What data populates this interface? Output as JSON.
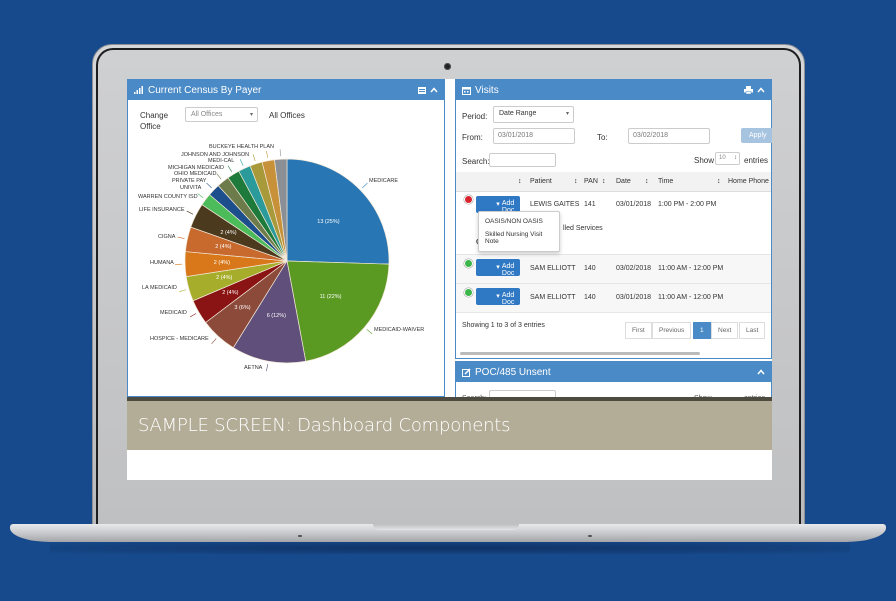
{
  "census_panel": {
    "title": "Current Census By Payer",
    "change_office_label": "Change Office",
    "office_select_value": "All Offices",
    "office_display": "All Offices"
  },
  "visits_panel": {
    "title": "Visits",
    "period_label": "Period:",
    "period_value": "Date Range",
    "from_label": "From:",
    "from_value": "03/01/2018",
    "to_label": "To:",
    "to_value": "03/02/2018",
    "apply_label": "Apply",
    "search_label": "Search:",
    "search_value": "",
    "show_label": "Show",
    "show_value": "10",
    "entries_label": "entries",
    "columns": [
      "Patient",
      "PAN",
      "Date",
      "Time",
      "Home Phone"
    ],
    "rows": [
      {
        "status": "red",
        "action": "Add Doc",
        "patient": "LEWIS GAITES",
        "pan": "141",
        "date": "03/01/2018",
        "time": "1:00 PM - 2:00 PM",
        "phone": ""
      },
      {
        "status": "green",
        "action": "Add Doc",
        "patient": "SAM ELLIOTT",
        "pan": "140",
        "date": "03/02/2018",
        "time": "11:00 AM - 12:00 PM",
        "phone": ""
      },
      {
        "status": "green",
        "action": "Add Doc",
        "patient": "SAM ELLIOTT",
        "pan": "140",
        "date": "03/01/2018",
        "time": "11:00 AM - 12:00 PM",
        "phone": ""
      }
    ],
    "dropdown_items": [
      "OASIS/NON OASIS",
      "Skilled Nursing Visit Note"
    ],
    "expanded_partial_text": "lled Services",
    "comments_label": "Comments:",
    "info_text": "Showing 1 to 3 of 3 entries",
    "pagination": [
      "First",
      "Previous",
      "1",
      "Next",
      "Last"
    ],
    "active_page": "1"
  },
  "poc_panel": {
    "title": "POC/485 Unsent",
    "search_label": "Search:",
    "show_label": "Show",
    "entries_label": "entries"
  },
  "banner": {
    "text": "SAMPLE SCREEN: Dashboard Components"
  },
  "colors": {
    "background": "#174a8c",
    "panel_header": "#4a8ac6",
    "button_primary": "#2f78c4",
    "banner": "#b3ad98"
  },
  "chart_data": {
    "type": "pie",
    "title": "Current Census By Payer",
    "slices": [
      {
        "label": "MEDICARE",
        "value": 13,
        "pct": "25%",
        "color": "#2876b3"
      },
      {
        "label": "MEDICAID-WAIVER",
        "value": 11,
        "pct": "22%",
        "color": "#5a9a22"
      },
      {
        "label": "AETNA",
        "value": 6,
        "pct": "12%",
        "color": "#5f4f7a"
      },
      {
        "label": "HOSPICE - MEDICARE",
        "value": 3,
        "pct": "6%",
        "color": "#8b4a3a"
      },
      {
        "label": "MEDICAID",
        "value": 2,
        "pct": "4%",
        "color": "#8a1414"
      },
      {
        "label": "LA MEDICAID",
        "value": 2,
        "pct": "4%",
        "color": "#a6ad2a"
      },
      {
        "label": "HUMANA",
        "value": 2,
        "pct": "4%",
        "color": "#d8781a"
      },
      {
        "label": "CIGNA",
        "value": 2,
        "pct": "4%",
        "color": "#c8692e"
      },
      {
        "label": "LIFE INSURANCE",
        "value": 2,
        "pct": "4%",
        "color": "#4c3a1e"
      },
      {
        "label": "WARREN COUNTY ISD",
        "value": 1,
        "pct": "2%",
        "color": "#4cbb5a"
      },
      {
        "label": "UNIVITA",
        "value": 1,
        "pct": "2%",
        "color": "#1d4f8c"
      },
      {
        "label": "PRIVATE PAY",
        "value": 1,
        "pct": "2%",
        "color": "#6d7a4a"
      },
      {
        "label": "OHIO MEDICAID",
        "value": 1,
        "pct": "2%",
        "color": "#1e7a3a"
      },
      {
        "label": "MICHIGAN MEDICAID",
        "value": 1,
        "pct": "2%",
        "color": "#2a9a9a"
      },
      {
        "label": "MEDI-CAL",
        "value": 1,
        "pct": "2%",
        "color": "#a89a3a"
      },
      {
        "label": "JOHNSON AND JOHNSON",
        "value": 1,
        "pct": "2%",
        "color": "#c7913a"
      },
      {
        "label": "BUCKEYE HEALTH PLAN",
        "value": 1,
        "pct": "2%",
        "color": "#8a8f96"
      }
    ]
  }
}
